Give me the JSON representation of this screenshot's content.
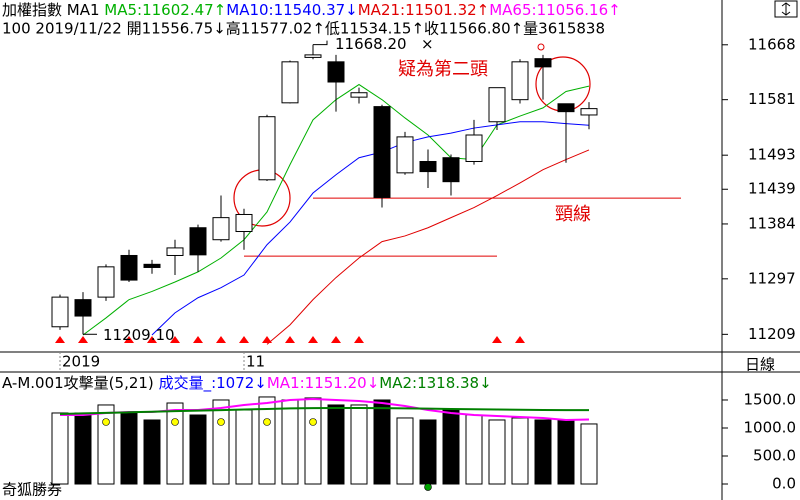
{
  "chart_data": [
    {
      "type": "candlestick",
      "header": [
        {
          "text": "加權指數 MA1 ",
          "color": "#000000"
        },
        {
          "text": "MA5:11602.47↑",
          "color": "#00b000"
        },
        {
          "text": "MA10:11540.37↓",
          "color": "#0000ff"
        },
        {
          "text": "MA21:11501.32↑",
          "color": "#e00000"
        },
        {
          "text": "MA65:11056.16↑",
          "color": "#ff00ff"
        }
      ],
      "info": "100 2019/11/22 開11556.75↓高11577.02↑低11534.15↑收11566.80↑量3615838",
      "categories": [
        "2019",
        null,
        null,
        null,
        null,
        null,
        null,
        null,
        "11",
        null,
        null,
        null,
        null,
        null,
        null,
        null,
        null,
        null,
        null,
        null,
        null,
        null,
        null,
        null
      ],
      "open": [
        11221,
        11264,
        11268,
        11334,
        11320,
        11334,
        11378,
        11359,
        11372,
        11454,
        11576,
        11648,
        11641,
        11585,
        11570,
        11465,
        11483,
        11489,
        11483,
        11546,
        11581,
        11646,
        11574.5,
        11556.75
      ],
      "high": [
        11272,
        11276,
        11320,
        11343,
        11327,
        11359,
        11383,
        11429,
        11408,
        11557,
        11643,
        11668.2,
        11652,
        11600,
        11573,
        11530,
        11502,
        11494,
        11549,
        11600,
        11645,
        11652,
        11574.5,
        11577.02
      ],
      "low": [
        11216,
        11209.1,
        11262,
        11292,
        11305,
        11303,
        11308,
        11356,
        11343,
        11452,
        11575,
        11645,
        11562,
        11575,
        11410,
        11462,
        11441,
        11429,
        11478,
        11533,
        11575,
        11581,
        11481,
        11534.15
      ],
      "close": [
        11268,
        11238,
        11316,
        11295,
        11315,
        11346,
        11335,
        11394,
        11399,
        11554,
        11641,
        11652,
        11609,
        11592,
        11426,
        11522,
        11467,
        11451,
        11525,
        11600,
        11641,
        11633,
        11562,
        11566.8
      ],
      "up_color": "#ffffff",
      "down_color": "#000000",
      "series": [
        {
          "color": "#00b000",
          "values": [
            null,
            11208,
            11235,
            11264,
            11277,
            11292,
            11308,
            11330,
            11359,
            11403,
            11478,
            11549,
            11581,
            11605,
            11581,
            11552,
            11525,
            11489,
            11486,
            11541,
            11555,
            11568,
            11594,
            11602.47
          ]
        },
        {
          "color": "#0000ff",
          "values": [
            null,
            null,
            null,
            null,
            11208,
            11243,
            11267,
            11283,
            11303,
            11351,
            11387,
            11433,
            11462,
            11489,
            11498,
            11513,
            11522,
            11528,
            11536,
            11541,
            11546,
            11546,
            11543,
            11540.37
          ]
        },
        {
          "color": "#e00000",
          "values": [
            null,
            null,
            null,
            null,
            null,
            null,
            null,
            null,
            null,
            11193,
            11224,
            11264,
            11299,
            11330,
            11356,
            11365,
            11378,
            11394,
            11410,
            11429,
            11449,
            11470,
            11486,
            11501.32
          ]
        }
      ],
      "ylim": [
        11181,
        11739
      ],
      "yticks": [
        11209,
        11297,
        11384,
        11439,
        11493,
        11581,
        11668
      ],
      "signals": [
        0,
        1,
        3,
        4,
        5,
        6,
        7,
        8,
        9,
        10,
        11,
        12,
        13,
        19,
        20
      ],
      "signal_color": "#ff0000",
      "levels": [
        {
          "value": 11425,
          "from": 11,
          "to": 27
        },
        {
          "value": 11333,
          "from": 8,
          "to": 19
        }
      ],
      "level_color": "#e00000",
      "high_index": 11,
      "high_label": "11668.20",
      "low_index": 1,
      "low_label": "11209.10",
      "notes": [
        "疑為第二頭",
        "頸線"
      ],
      "period": "日線"
    },
    {
      "type": "volume",
      "header": [
        {
          "text": "A-M.001攻擊量(5,21) ",
          "color": "#000000"
        },
        {
          "text": "成交量_:1072↓",
          "color": "#0000ff"
        },
        {
          "text": "MA1:1151.20↓",
          "color": "#ff00ff"
        },
        {
          "text": "MA2:1318.38↓",
          "color": "#008000"
        }
      ],
      "values": [
        1268,
        1268,
        1411,
        1268,
        1143,
        1446,
        1232,
        1500,
        1321,
        1554,
        1500,
        1536,
        1411,
        1411,
        1500,
        1179,
        1143,
        1321,
        1232,
        1143,
        1179,
        1143,
        1143,
        1072
      ],
      "series": [
        {
          "color": "#ff00ff",
          "values": [
            1232,
            1232,
            1268,
            1286,
            1286,
            1321,
            1321,
            1357,
            1411,
            1446,
            1500,
            1518,
            1500,
            1482,
            1446,
            1393,
            1321,
            1268,
            1232,
            1214,
            1196,
            1179,
            1143,
            1151.2
          ]
        },
        {
          "color": "#008000",
          "values": [
            1250,
            1260,
            1270,
            1280,
            1290,
            1300,
            1310,
            1320,
            1330,
            1340,
            1350,
            1355,
            1357,
            1357,
            1355,
            1350,
            1345,
            1340,
            1335,
            1330,
            1326,
            1322,
            1320,
            1318.38
          ]
        }
      ],
      "dots": [
        {
          "color": "#ffff00",
          "values": [
            null,
            null,
            1107,
            null,
            null,
            1107,
            null,
            1107,
            null,
            1107,
            null,
            1107,
            null,
            null,
            null,
            null,
            null,
            null,
            null,
            null,
            null,
            null,
            null,
            null
          ]
        },
        {
          "color": "#00a000",
          "values": [
            null,
            null,
            null,
            null,
            null,
            null,
            null,
            null,
            null,
            null,
            null,
            null,
            null,
            null,
            null,
            null,
            -54,
            null,
            null,
            null,
            null,
            null,
            null,
            null
          ]
        }
      ],
      "ylim": [
        -107,
        1946
      ],
      "yticks": [
        {
          "value": 0,
          "label": "0.0"
        },
        {
          "value": 500,
          "label": "500.0"
        },
        {
          "value": 1000,
          "label": "1000.0"
        },
        {
          "value": 1500,
          "label": "1500.0"
        }
      ],
      "footer": "奇狐勝券"
    }
  ]
}
